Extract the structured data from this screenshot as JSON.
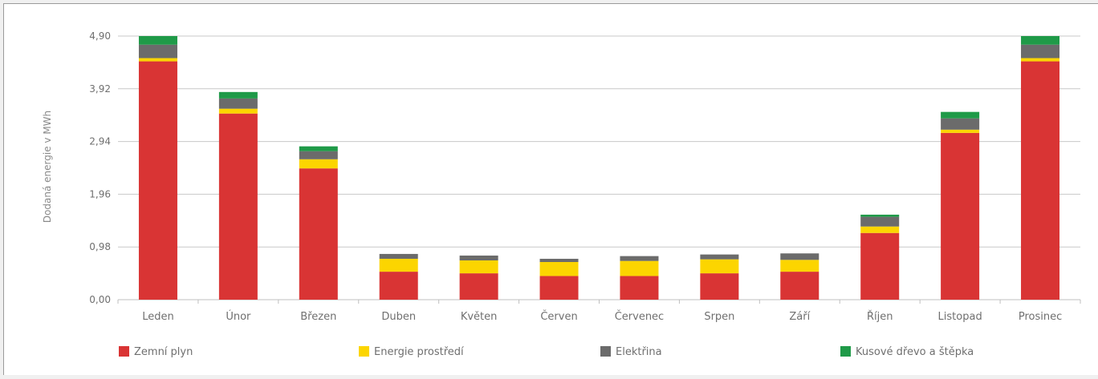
{
  "chart_data": {
    "type": "bar",
    "stacked": true,
    "ylabel": "Dodaná energie v MWh",
    "yticks": [
      "0,00",
      "0,98",
      "1,96",
      "2,94",
      "3,92",
      "4,90"
    ],
    "ylim": [
      0,
      4.9
    ],
    "categories": [
      "Leden",
      "Únor",
      "Březen",
      "Duben",
      "Květen",
      "Červen",
      "Červenec",
      "Srpen",
      "Září",
      "Říjen",
      "Listopad",
      "Prosinec"
    ],
    "series": [
      {
        "name": "Zemní plyn",
        "color": "#d93434",
        "values": [
          4.43,
          3.46,
          2.44,
          0.52,
          0.49,
          0.44,
          0.44,
          0.49,
          0.52,
          1.24,
          3.1,
          4.43
        ]
      },
      {
        "name": "Energie prostředí",
        "color": "#fcd500",
        "values": [
          0.06,
          0.09,
          0.17,
          0.24,
          0.24,
          0.26,
          0.28,
          0.26,
          0.22,
          0.12,
          0.06,
          0.06
        ]
      },
      {
        "name": "Elektřina",
        "color": "#6b6b6b",
        "values": [
          0.25,
          0.19,
          0.15,
          0.09,
          0.09,
          0.06,
          0.09,
          0.09,
          0.12,
          0.18,
          0.21,
          0.25
        ]
      },
      {
        "name": "Kusové dřevo a štěpka",
        "color": "#1f9a48",
        "values": [
          0.16,
          0.12,
          0.09,
          0.0,
          0.0,
          0.0,
          0.0,
          0.0,
          0.0,
          0.04,
          0.12,
          0.16
        ]
      }
    ],
    "grid": true,
    "legend_position": "bottom"
  }
}
